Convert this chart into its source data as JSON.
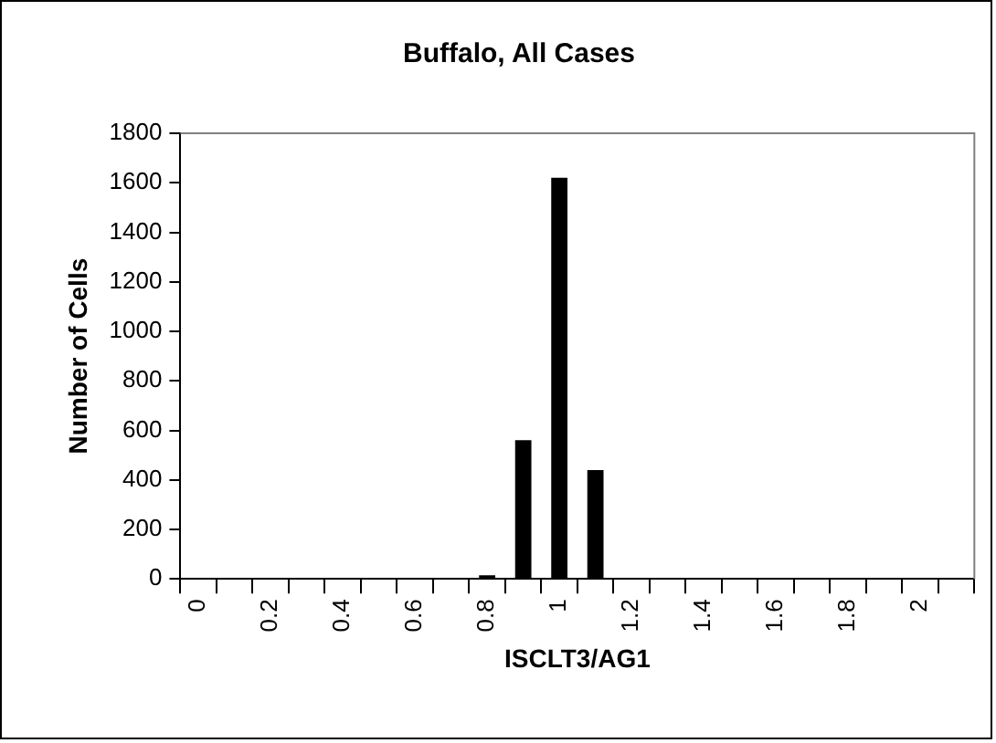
{
  "chart_data": {
    "type": "bar",
    "title": "Buffalo, All Cases",
    "xlabel": "ISCLT3/AG1",
    "ylabel": "Number of Cells",
    "categories": [
      "0",
      null,
      "0.2",
      null,
      "0.4",
      null,
      "0.6",
      null,
      "0.8",
      null,
      "1",
      null,
      "1.2",
      null,
      "1.4",
      null,
      "1.6",
      null,
      "1.8",
      null,
      "2",
      null
    ],
    "values": [
      0,
      0,
      0,
      0,
      0,
      0,
      2,
      5,
      15,
      560,
      1620,
      440,
      0,
      0,
      0,
      0,
      0,
      0,
      0,
      0,
      0,
      0
    ],
    "color": "#000000",
    "ylim": [
      0,
      1800
    ],
    "yticks": [
      0,
      200,
      400,
      600,
      800,
      1000,
      1200,
      1400,
      1600,
      1800
    ],
    "grid": false,
    "legend": false
  }
}
